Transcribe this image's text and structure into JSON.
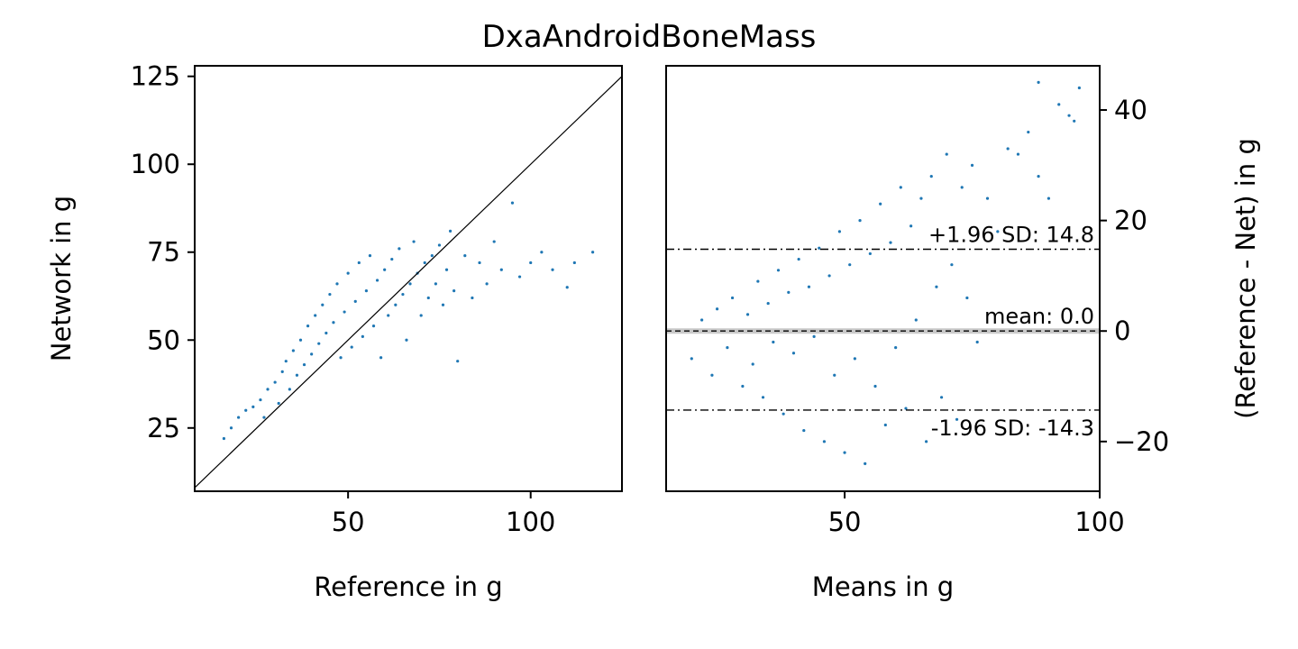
{
  "figure_title": "DxaAndroidBoneMass",
  "colors": {
    "points": "#1f77b4",
    "identity_line": "#000000",
    "limit_lines": "#000000",
    "mean_band": "#bbbbbb",
    "axes": "#000000"
  },
  "chart_data": [
    {
      "type": "scatter",
      "title": "",
      "xlabel": "Reference in g",
      "ylabel": "Network in g",
      "xlim": [
        8,
        125
      ],
      "ylim": [
        7,
        128
      ],
      "xticks": [
        50,
        100
      ],
      "yticks": [
        25,
        50,
        75,
        100,
        125
      ],
      "ylabel_side": "left",
      "identity_line": true,
      "grid": false,
      "legend": "none",
      "series": [
        {
          "points": [
            [
              16,
              22
            ],
            [
              18,
              25
            ],
            [
              20,
              28
            ],
            [
              22,
              30
            ],
            [
              24,
              31
            ],
            [
              26,
              33
            ],
            [
              27,
              28
            ],
            [
              28,
              36
            ],
            [
              30,
              38
            ],
            [
              31,
              32
            ],
            [
              32,
              41
            ],
            [
              33,
              44
            ],
            [
              34,
              36
            ],
            [
              35,
              47
            ],
            [
              36,
              40
            ],
            [
              37,
              50
            ],
            [
              38,
              43
            ],
            [
              39,
              54
            ],
            [
              40,
              46
            ],
            [
              41,
              57
            ],
            [
              42,
              49
            ],
            [
              43,
              60
            ],
            [
              44,
              52
            ],
            [
              45,
              63
            ],
            [
              46,
              55
            ],
            [
              47,
              66
            ],
            [
              48,
              45
            ],
            [
              49,
              58
            ],
            [
              50,
              69
            ],
            [
              51,
              48
            ],
            [
              52,
              61
            ],
            [
              53,
              72
            ],
            [
              54,
              51
            ],
            [
              55,
              64
            ],
            [
              56,
              74
            ],
            [
              57,
              54
            ],
            [
              58,
              67
            ],
            [
              59,
              45
            ],
            [
              60,
              70
            ],
            [
              61,
              57
            ],
            [
              62,
              73
            ],
            [
              63,
              60
            ],
            [
              64,
              76
            ],
            [
              65,
              63
            ],
            [
              66,
              50
            ],
            [
              67,
              66
            ],
            [
              68,
              78
            ],
            [
              69,
              69
            ],
            [
              70,
              57
            ],
            [
              71,
              72
            ],
            [
              72,
              62
            ],
            [
              73,
              74
            ],
            [
              74,
              66
            ],
            [
              75,
              77
            ],
            [
              76,
              60
            ],
            [
              77,
              70
            ],
            [
              78,
              81
            ],
            [
              79,
              64
            ],
            [
              80,
              44
            ],
            [
              82,
              74
            ],
            [
              84,
              62
            ],
            [
              86,
              72
            ],
            [
              88,
              66
            ],
            [
              90,
              78
            ],
            [
              92,
              70
            ],
            [
              95,
              89
            ],
            [
              97,
              68
            ],
            [
              100,
              72
            ],
            [
              103,
              75
            ],
            [
              106,
              70
            ],
            [
              110,
              65
            ],
            [
              112,
              72
            ],
            [
              117,
              75
            ]
          ]
        }
      ]
    },
    {
      "type": "scatter",
      "title": "",
      "xlabel": "Means in g",
      "ylabel": "(Reference - Net) in g",
      "xlim": [
        15,
        100
      ],
      "ylim": [
        -29,
        48
      ],
      "xticks": [
        50,
        100
      ],
      "yticks": [
        -20,
        0,
        20,
        40
      ],
      "ylabel_side": "right",
      "grid": false,
      "legend": "none",
      "hlines": [
        {
          "name": "upper-limit",
          "y": 14.8,
          "style": "dashdot",
          "label": "+1.96 SD: 14.8"
        },
        {
          "name": "mean",
          "y": 0.0,
          "style": "dashed",
          "label": "mean: 0.0"
        },
        {
          "name": "lower-limit",
          "y": -14.3,
          "style": "dashdot",
          "label": "-1.96 SD: -14.3"
        }
      ],
      "series": [
        {
          "points": [
            [
              20,
              -5
            ],
            [
              22,
              2
            ],
            [
              24,
              -8
            ],
            [
              25,
              4
            ],
            [
              27,
              -3
            ],
            [
              28,
              6
            ],
            [
              30,
              -10
            ],
            [
              31,
              3
            ],
            [
              32,
              -6
            ],
            [
              33,
              9
            ],
            [
              34,
              -12
            ],
            [
              35,
              5
            ],
            [
              36,
              -2
            ],
            [
              37,
              11
            ],
            [
              38,
              -15
            ],
            [
              39,
              7
            ],
            [
              40,
              -4
            ],
            [
              41,
              13
            ],
            [
              42,
              -18
            ],
            [
              43,
              8
            ],
            [
              44,
              -1
            ],
            [
              45,
              15
            ],
            [
              46,
              -20
            ],
            [
              47,
              10
            ],
            [
              48,
              -8
            ],
            [
              49,
              18
            ],
            [
              50,
              -22
            ],
            [
              51,
              12
            ],
            [
              52,
              -5
            ],
            [
              53,
              20
            ],
            [
              54,
              -24
            ],
            [
              55,
              14
            ],
            [
              56,
              -10
            ],
            [
              57,
              23
            ],
            [
              58,
              -17
            ],
            [
              59,
              16
            ],
            [
              60,
              -3
            ],
            [
              61,
              26
            ],
            [
              62,
              -14
            ],
            [
              63,
              19
            ],
            [
              64,
              2
            ],
            [
              65,
              24
            ],
            [
              66,
              -20
            ],
            [
              67,
              28
            ],
            [
              68,
              8
            ],
            [
              69,
              -12
            ],
            [
              70,
              32
            ],
            [
              71,
              12
            ],
            [
              72,
              -16
            ],
            [
              73,
              26
            ],
            [
              74,
              6
            ],
            [
              75,
              30
            ],
            [
              76,
              -2
            ],
            [
              78,
              24
            ],
            [
              80,
              18
            ],
            [
              82,
              33
            ],
            [
              84,
              32
            ],
            [
              86,
              36
            ],
            [
              88,
              28
            ],
            [
              90,
              24
            ],
            [
              92,
              41
            ],
            [
              94,
              39
            ],
            [
              95,
              38
            ],
            [
              96,
              44
            ],
            [
              88,
              45
            ]
          ]
        }
      ]
    }
  ]
}
